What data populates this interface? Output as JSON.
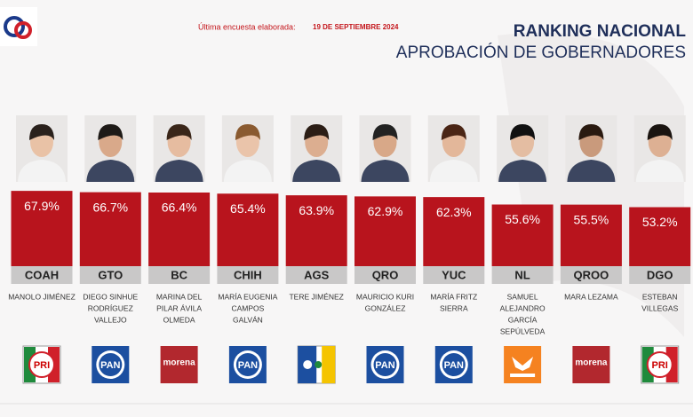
{
  "chart_data": {
    "type": "bar",
    "title": "RANKING NACIONAL",
    "subtitle": "APROBACIÓN DE GOBERNADORES",
    "survey_label": "Última encuesta elaborada:",
    "survey_date": "19 DE SEPTIEMBRE 2024",
    "categories": [
      "COAH",
      "GTO",
      "BC",
      "CHIH",
      "AGS",
      "QRO",
      "YUC",
      "NL",
      "QROO",
      "DGO"
    ],
    "values": [
      67.9,
      66.7,
      66.4,
      65.4,
      63.9,
      62.9,
      62.3,
      55.6,
      55.5,
      53.2
    ],
    "value_labels": [
      "67.9%",
      "66.7%",
      "66.4%",
      "65.4%",
      "63.9%",
      "62.9%",
      "62.3%",
      "55.6%",
      "55.5%",
      "53.2%"
    ],
    "names": [
      [
        "MANOLO JIMÉNEZ"
      ],
      [
        "DIEGO SINHUE",
        "RODRÍGUEZ",
        "VALLEJO"
      ],
      [
        "MARINA DEL",
        "PILAR ÁVILA",
        "OLMEDA"
      ],
      [
        "MARÍA EUGENIA",
        "CAMPOS",
        "GALVÁN"
      ],
      [
        "TERE JIMÉNEZ"
      ],
      [
        "MAURICIO KURI",
        "GONZÁLEZ"
      ],
      [
        "MARÍA FRITZ",
        "SIERRA"
      ],
      [
        "SAMUEL",
        "ALEJANDRO",
        "GARCÍA",
        "SEPÚLVEDA"
      ],
      [
        "MARA LEZAMA"
      ],
      [
        "ESTEBAN",
        "VILLEGAS"
      ]
    ],
    "parties": [
      "PRI",
      "PAN",
      "morena",
      "PAN",
      null,
      "PAN",
      "PAN",
      null,
      "morena",
      "PRI"
    ],
    "color": "#b8141d"
  }
}
